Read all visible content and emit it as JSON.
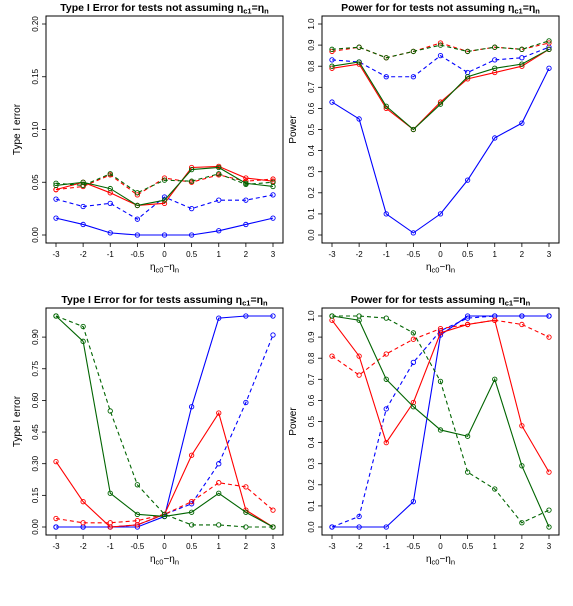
{
  "chart_data": [
    {
      "type": "line",
      "title": "Type I Error for tests not assuming ηc1=ηn",
      "xlabel": "ηc0−ηn",
      "ylabel": "Type I error",
      "x": [
        -3,
        -2,
        -1,
        -0.5,
        0,
        0.5,
        1,
        2,
        3
      ],
      "xticks": [
        "-3",
        "-2",
        "-1",
        "-0.5",
        "0",
        "0.5",
        "1",
        "2",
        "3"
      ],
      "ylim": [
        0,
        0.2
      ],
      "yticks": [
        "0.00",
        "0.05",
        "0.10",
        "0.15",
        "0.20"
      ],
      "series": [
        {
          "color": "#0000ff",
          "style": "solid",
          "values": [
            0.016,
            0.01,
            0.002,
            0.0,
            0.0,
            0.0,
            0.004,
            0.01,
            0.016
          ]
        },
        {
          "color": "#0000ff",
          "style": "dashed",
          "values": [
            0.034,
            0.027,
            0.03,
            0.015,
            0.036,
            0.025,
            0.033,
            0.033,
            0.038
          ]
        },
        {
          "color": "#ff0000",
          "style": "solid",
          "values": [
            0.043,
            0.05,
            0.04,
            0.028,
            0.03,
            0.064,
            0.065,
            0.054,
            0.051
          ]
        },
        {
          "color": "#ff0000",
          "style": "dashed",
          "values": [
            0.043,
            0.046,
            0.057,
            0.038,
            0.054,
            0.05,
            0.057,
            0.051,
            0.053
          ]
        },
        {
          "color": "#006400",
          "style": "solid",
          "values": [
            0.047,
            0.05,
            0.044,
            0.028,
            0.033,
            0.062,
            0.064,
            0.049,
            0.046
          ]
        },
        {
          "color": "#006400",
          "style": "dashed",
          "values": [
            0.049,
            0.047,
            0.058,
            0.04,
            0.052,
            0.051,
            0.058,
            0.048,
            0.05
          ]
        }
      ]
    },
    {
      "type": "line",
      "title": "Power for for tests not assuming ηc1=ηn",
      "xlabel": "ηc0−ηn",
      "ylabel": "Power",
      "x": [
        -3,
        -2,
        -1,
        -0.5,
        0,
        0.5,
        1,
        2,
        3
      ],
      "xticks": [
        "-3",
        "-2",
        "-1",
        "-0.5",
        "0",
        "0.5",
        "1",
        "2",
        "3"
      ],
      "ylim": [
        0,
        1
      ],
      "yticks": [
        "0.0",
        "0.1",
        "0.2",
        "0.3",
        "0.4",
        "0.5",
        "0.6",
        "0.7",
        "0.8",
        "0.9",
        "1.0"
      ],
      "series": [
        {
          "color": "#0000ff",
          "style": "solid",
          "values": [
            0.63,
            0.55,
            0.1,
            0.01,
            0.1,
            0.26,
            0.46,
            0.53,
            0.79
          ]
        },
        {
          "color": "#0000ff",
          "style": "dashed",
          "values": [
            0.83,
            0.82,
            0.75,
            0.75,
            0.85,
            0.77,
            0.83,
            0.84,
            0.89
          ]
        },
        {
          "color": "#ff0000",
          "style": "solid",
          "values": [
            0.79,
            0.81,
            0.6,
            0.5,
            0.63,
            0.74,
            0.77,
            0.8,
            0.88
          ]
        },
        {
          "color": "#ff0000",
          "style": "dashed",
          "values": [
            0.87,
            0.89,
            0.84,
            0.87,
            0.91,
            0.87,
            0.89,
            0.88,
            0.91
          ]
        },
        {
          "color": "#006400",
          "style": "solid",
          "values": [
            0.8,
            0.82,
            0.61,
            0.5,
            0.62,
            0.75,
            0.79,
            0.81,
            0.88
          ]
        },
        {
          "color": "#006400",
          "style": "dashed",
          "values": [
            0.88,
            0.89,
            0.84,
            0.87,
            0.9,
            0.87,
            0.89,
            0.88,
            0.92
          ]
        }
      ]
    },
    {
      "type": "line",
      "title": "Type I Error for for tests assuming ηc1=ηn",
      "xlabel": "ηc0−ηn",
      "ylabel": "Type I error",
      "x": [
        -3,
        -2,
        -1,
        -0.5,
        0,
        0.5,
        1,
        2,
        3
      ],
      "xticks": [
        "-3",
        "-2",
        "-1",
        "-0.5",
        "0",
        "0.5",
        "1",
        "2",
        "3"
      ],
      "ylim": [
        0,
        1
      ],
      "yticks": [
        "0.00",
        "0.15",
        "0.30",
        "0.45",
        "0.60",
        "0.75",
        "0.90"
      ],
      "series": [
        {
          "color": "#0000ff",
          "style": "solid",
          "values": [
            0.0,
            0.0,
            0.0,
            0.0,
            0.05,
            0.57,
            0.99,
            1.0,
            1.0
          ]
        },
        {
          "color": "#0000ff",
          "style": "dashed",
          "values": [
            0.0,
            0.0,
            0.0,
            0.01,
            0.06,
            0.11,
            0.3,
            0.59,
            0.91
          ]
        },
        {
          "color": "#ff0000",
          "style": "solid",
          "values": [
            0.31,
            0.12,
            0.0,
            0.01,
            0.06,
            0.34,
            0.54,
            0.08,
            0.0
          ]
        },
        {
          "color": "#ff0000",
          "style": "dashed",
          "values": [
            0.04,
            0.02,
            0.02,
            0.03,
            0.06,
            0.12,
            0.21,
            0.19,
            0.08
          ]
        },
        {
          "color": "#006400",
          "style": "solid",
          "values": [
            1.0,
            0.88,
            0.16,
            0.06,
            0.05,
            0.07,
            0.16,
            0.07,
            0.0
          ]
        },
        {
          "color": "#006400",
          "style": "dashed",
          "values": [
            1.0,
            0.95,
            0.55,
            0.2,
            0.06,
            0.01,
            0.01,
            0.0,
            0.0
          ]
        }
      ]
    },
    {
      "type": "line",
      "title": "Power for for tests assuming ηc1=ηn",
      "xlabel": "ηc0−ηn",
      "ylabel": "Power",
      "x": [
        -3,
        -2,
        -1,
        -0.5,
        0,
        0.5,
        1,
        2,
        3
      ],
      "xticks": [
        "-3",
        "-2",
        "-1",
        "-0.5",
        "0",
        "0.5",
        "1",
        "2",
        "3"
      ],
      "ylim": [
        0,
        1
      ],
      "yticks": [
        "0.0",
        "0.1",
        "0.2",
        "0.3",
        "0.4",
        "0.5",
        "0.6",
        "0.7",
        "0.8",
        "0.9",
        "1.0"
      ],
      "series": [
        {
          "color": "#0000ff",
          "style": "solid",
          "values": [
            0.0,
            0.0,
            0.0,
            0.12,
            0.91,
            1.0,
            1.0,
            1.0,
            1.0
          ]
        },
        {
          "color": "#0000ff",
          "style": "dashed",
          "values": [
            0.0,
            0.05,
            0.56,
            0.78,
            0.93,
            0.99,
            1.0,
            1.0,
            1.0
          ]
        },
        {
          "color": "#ff0000",
          "style": "solid",
          "values": [
            0.98,
            0.81,
            0.4,
            0.59,
            0.92,
            0.96,
            0.98,
            0.48,
            0.26
          ]
        },
        {
          "color": "#ff0000",
          "style": "dashed",
          "values": [
            0.81,
            0.72,
            0.82,
            0.89,
            0.94,
            0.96,
            0.98,
            0.96,
            0.9
          ]
        },
        {
          "color": "#006400",
          "style": "solid",
          "values": [
            1.0,
            0.98,
            0.7,
            0.57,
            0.46,
            0.43,
            0.7,
            0.29,
            0.0
          ]
        },
        {
          "color": "#006400",
          "style": "dashed",
          "values": [
            1.0,
            1.0,
            0.99,
            0.92,
            0.69,
            0.26,
            0.18,
            0.02,
            0.08
          ]
        }
      ]
    }
  ]
}
